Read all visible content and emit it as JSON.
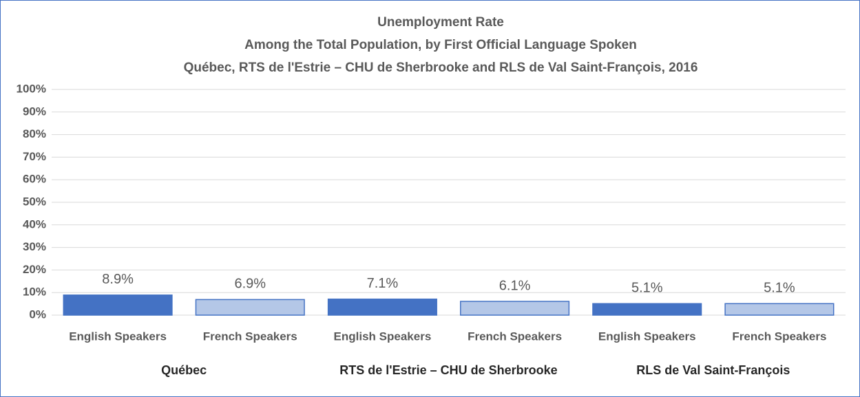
{
  "chart_data": {
    "type": "bar",
    "title": "Unemployment Rate",
    "subtitle": [
      "Among the Total Population, by First Official Language Spoken",
      "Québec, RTS de l'Estrie – CHU de Sherbrooke and RLS de Val Saint-François, 2016"
    ],
    "categories": [
      "English Speakers",
      "French Speakers",
      "English Speakers",
      "French Speakers",
      "English Speakers",
      "French Speakers"
    ],
    "groups": [
      "Québec",
      "RTS de l'Estrie – CHU de Sherbrooke",
      "RLS de Val Saint-François"
    ],
    "values": [
      8.9,
      6.9,
      7.1,
      6.1,
      5.1,
      5.1
    ],
    "value_labels": [
      "8.9%",
      "6.9%",
      "7.1%",
      "6.1%",
      "5.1%",
      "5.1%"
    ],
    "colors": [
      "#4472c4",
      "#b4c7e7",
      "#4472c4",
      "#b4c7e7",
      "#4472c4",
      "#b4c7e7"
    ],
    "ylim": [
      0,
      100
    ],
    "yticks": [
      {
        "value": 0,
        "label": "0%"
      },
      {
        "value": 10,
        "label": "10%"
      },
      {
        "value": 20,
        "label": "20%"
      },
      {
        "value": 30,
        "label": "30%"
      },
      {
        "value": 40,
        "label": "40%"
      },
      {
        "value": 50,
        "label": "50%"
      },
      {
        "value": 60,
        "label": "60%"
      },
      {
        "value": 70,
        "label": "70%"
      },
      {
        "value": 80,
        "label": "80%"
      },
      {
        "value": 90,
        "label": "90%"
      },
      {
        "value": 100,
        "label": "100%"
      }
    ],
    "grid": true
  }
}
